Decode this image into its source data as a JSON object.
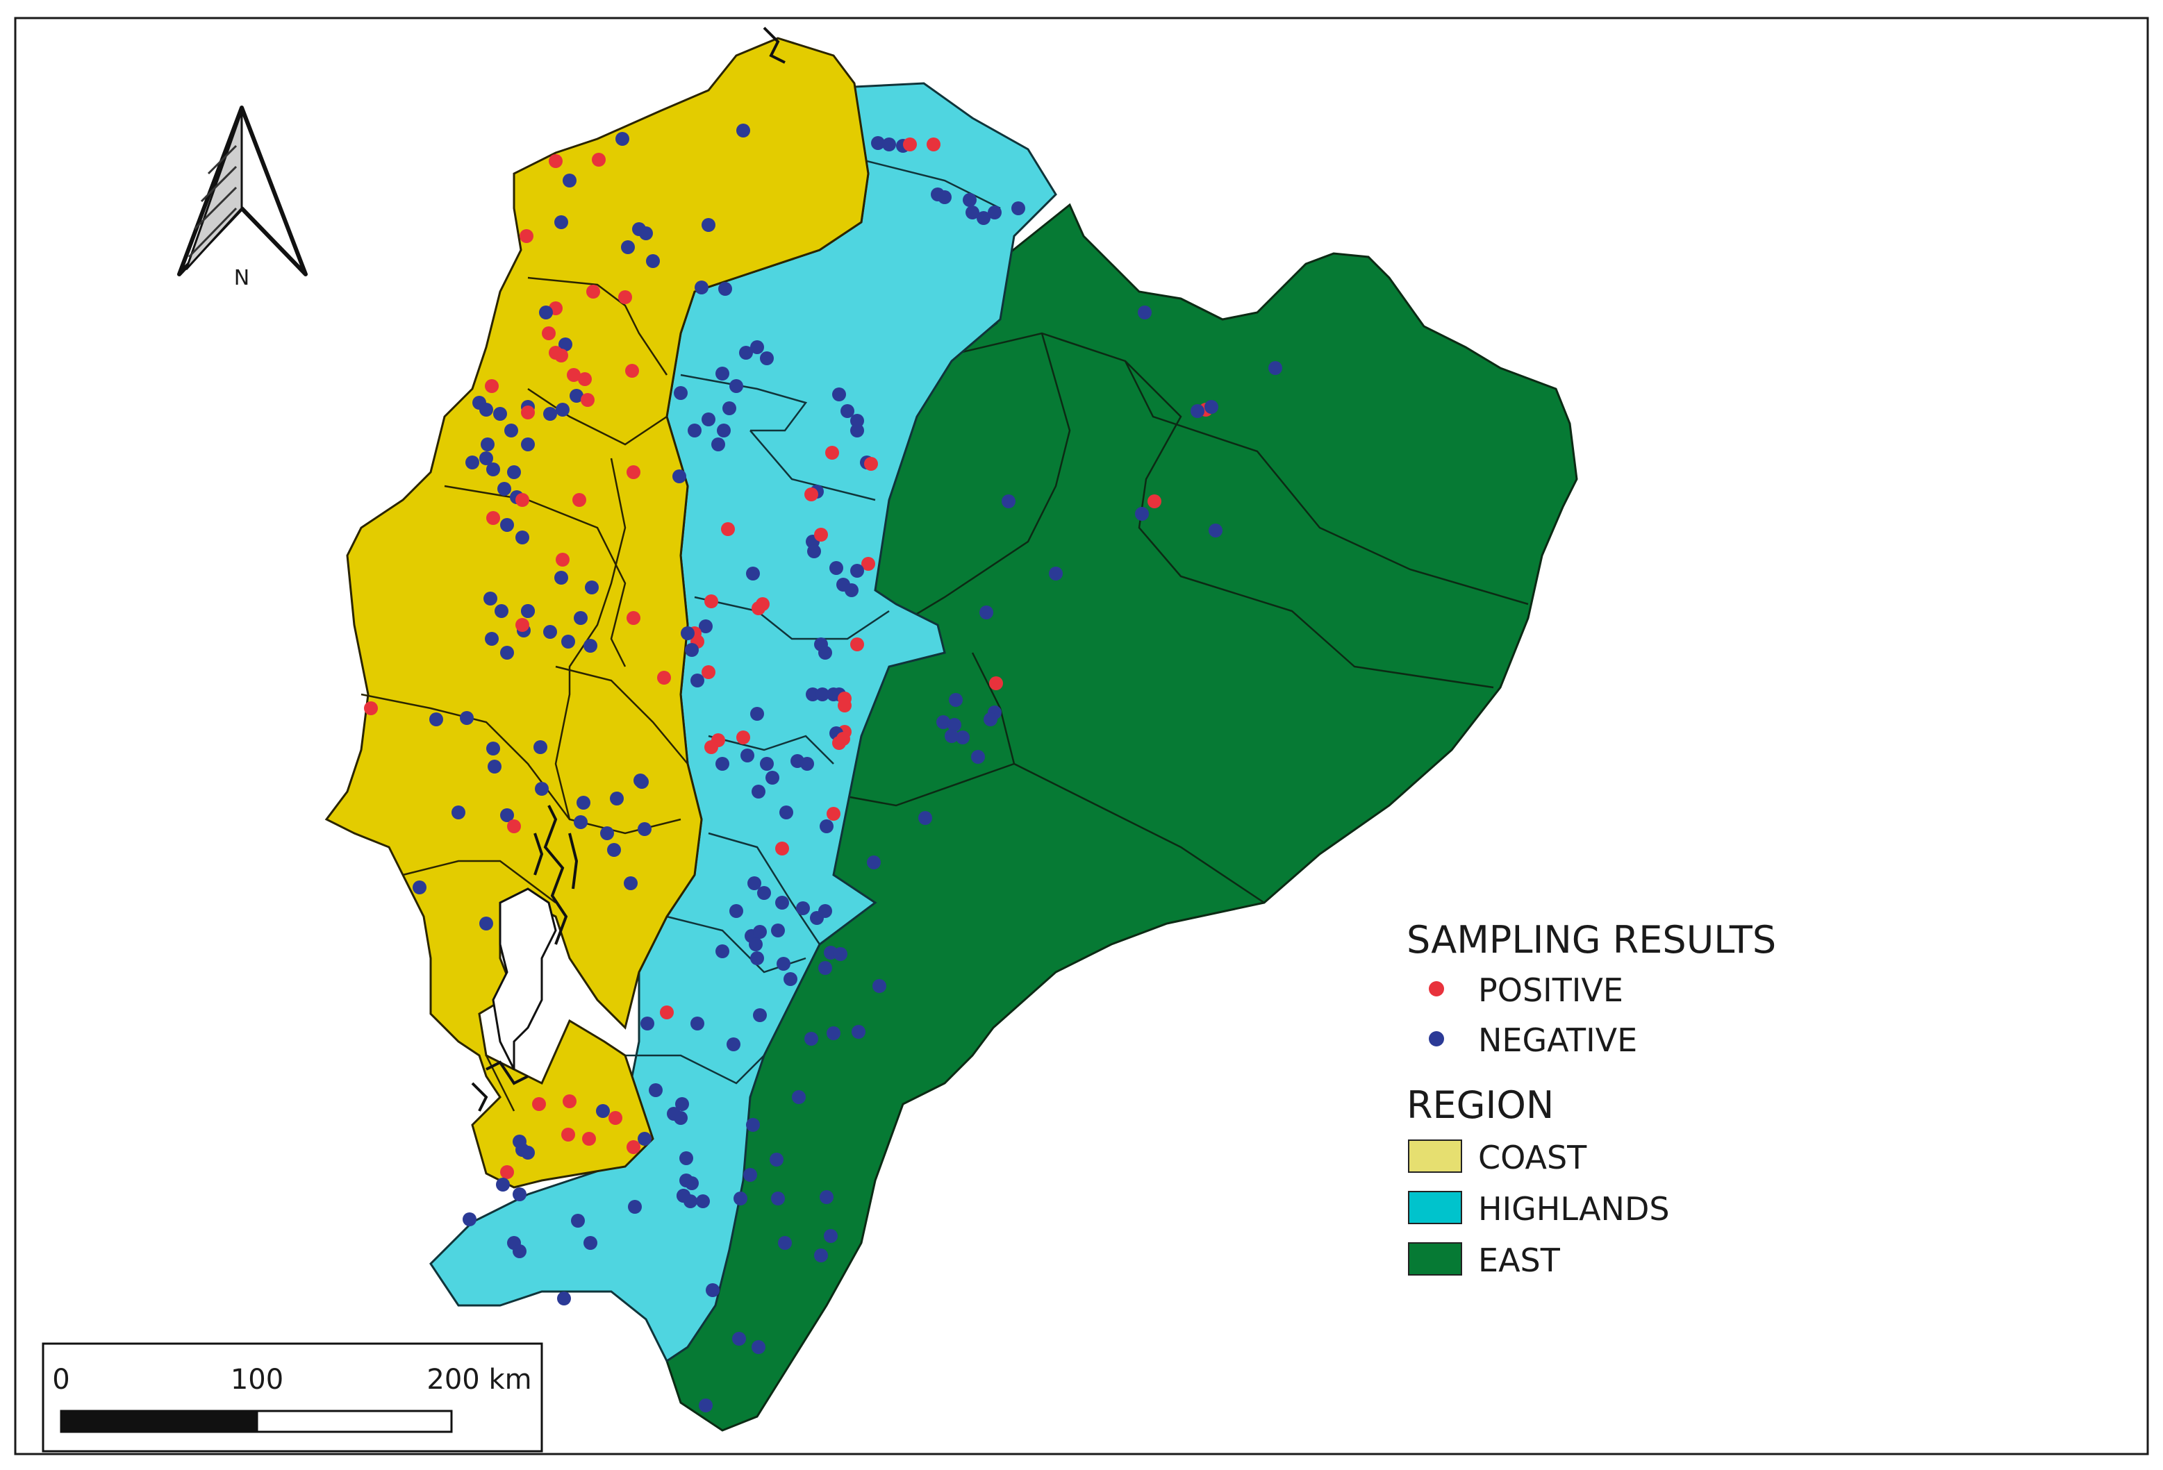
{
  "north_arrow": {
    "label": "N"
  },
  "scale_bar": {
    "tick_labels": [
      "0",
      "100",
      "200 km"
    ]
  },
  "legend": {
    "sampling_title": "SAMPLING RESULTS",
    "sampling_items": [
      {
        "label": "POSITIVE",
        "color": "#e8323c"
      },
      {
        "label": "NEGATIVE",
        "color": "#2b3a96"
      }
    ],
    "region_title": "REGION",
    "region_items": [
      {
        "label": "COAST",
        "color": "#e3cc00"
      },
      {
        "label": "HIGHLANDS",
        "color": "#4fd5e0"
      },
      {
        "label": "EAST",
        "color": "#067a34"
      }
    ]
  }
}
